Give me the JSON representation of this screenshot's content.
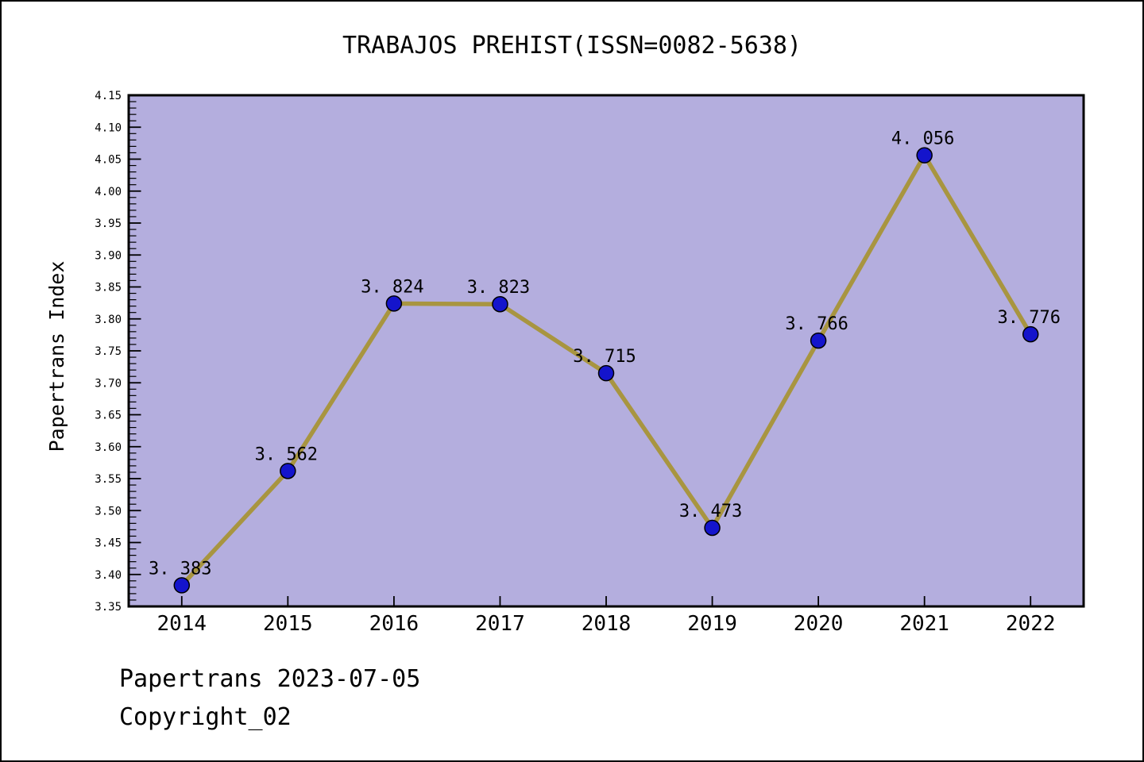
{
  "page": {
    "title": "TRABAJOS PREHIST(ISSN=0082-5638)"
  },
  "footer": {
    "line1": "Papertrans 2023-07-05",
    "line2": "Copyright_02"
  },
  "chart_data": {
    "type": "line",
    "title": "TRABAJOS PREHIST(ISSN=0082-5638)",
    "xlabel": "",
    "ylabel": "Papertrans Index",
    "categories": [
      "2014",
      "2015",
      "2016",
      "2017",
      "2018",
      "2019",
      "2020",
      "2021",
      "2022"
    ],
    "values": [
      3.383,
      3.562,
      3.824,
      3.823,
      3.715,
      3.473,
      3.766,
      4.056,
      3.776
    ],
    "point_labels": [
      "3. 383",
      "3. 562",
      "3. 824",
      "3. 823",
      "3. 715",
      "3. 473",
      "3. 766",
      "4. 056",
      "3. 776"
    ],
    "series_name": "Papertrans Index",
    "ylim": [
      3.35,
      4.15
    ],
    "ytick_step": 0.05,
    "ytick_minor_step": 0.01,
    "ytick_labels": [
      "3.35",
      "3.40",
      "3.45",
      "3.50",
      "3.55",
      "3.60",
      "3.65",
      "3.70",
      "3.75",
      "3.80",
      "3.85",
      "3.90",
      "3.95",
      "4.00",
      "4.05",
      "4.10",
      "4.15"
    ],
    "xtick_labels": [
      "2014",
      "2015",
      "2016",
      "2017",
      "2018",
      "2019",
      "2020",
      "2021",
      "2022"
    ],
    "grid": false,
    "legend": null,
    "colors": {
      "page_bg": "#ffffff",
      "plot_bg": "#b4aede",
      "line": "#a89540",
      "marker_fill": "#1414cc",
      "marker_edge": "#000000",
      "frame": "#000000",
      "text": "#000000"
    }
  }
}
